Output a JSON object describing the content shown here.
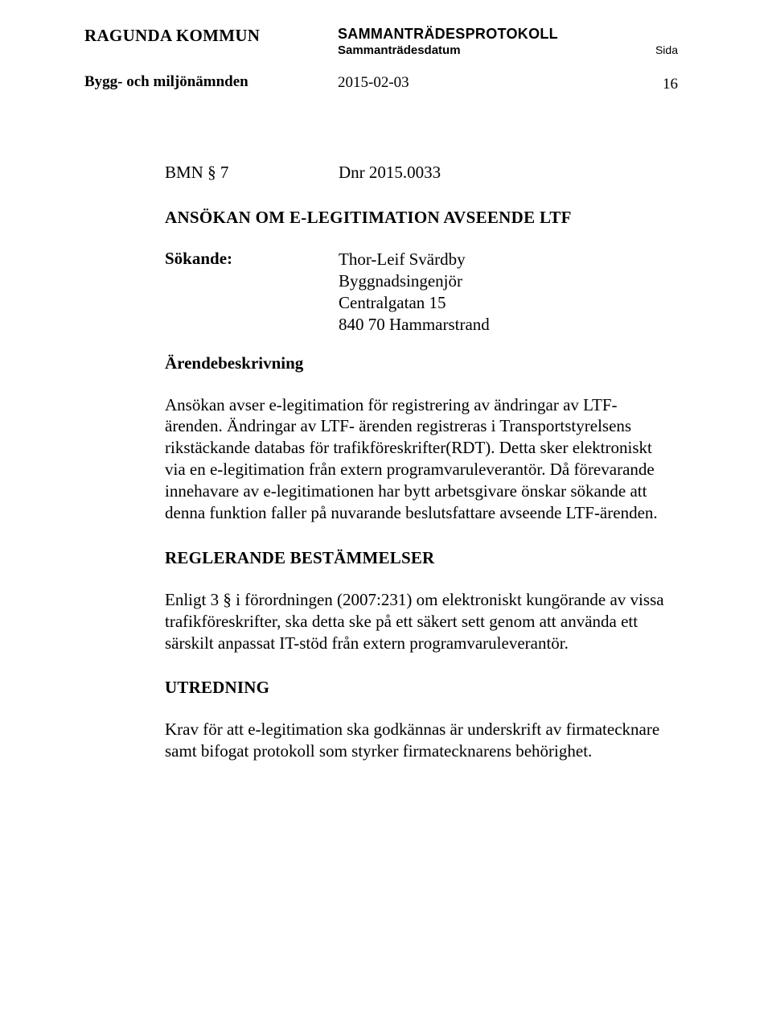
{
  "header": {
    "org": "RAGUNDA KOMMUN",
    "committee": "Bygg- och miljönämnden",
    "protocol": "SAMMANTRÄDESPROTOKOLL",
    "date_label": "Sammanträdesdatum",
    "date": "2015-02-03",
    "sida_label": "Sida",
    "page_number": "16"
  },
  "ref": {
    "left": "BMN § 7",
    "right": "Dnr 2015.0033"
  },
  "title": "ANSÖKAN OM E-LEGITIMATION AVSEENDE LTF",
  "applicant": {
    "label": "Sökande:",
    "name": "Thor-Leif Svärdby",
    "role": "Byggnadsingenjör",
    "street": "Centralgatan 15",
    "city": "840 70 Hammarstrand"
  },
  "desc_heading": "Ärendebeskrivning",
  "desc_text": "Ansökan avser e-legitimation för registrering av ändringar av LTF-ärenden. Ändringar av LTF- ärenden registreras i Transportstyrelsens rikstäckande databas för trafikföreskrifter(RDT). Detta sker elektroniskt via en e-legitimation från extern programvaruleverantör. Då förevarande innehavare av e-legitimationen har bytt arbetsgivare önskar sökande att denna funktion faller på nuvarande beslutsfattare avseende LTF-ärenden.",
  "rules_heading": "REGLERANDE BESTÄMMELSER",
  "rules_text": "Enligt 3 § i förordningen (2007:231) om elektroniskt kungörande av vissa trafikföreskrifter, ska detta ske på ett säkert sett genom att använda ett särskilt anpassat IT-stöd från extern programvaruleverantör.",
  "utredning_heading": "UTREDNING",
  "utredning_text": "Krav för att e-legitimation ska godkännas är underskrift av firmatecknare samt bifogat protokoll som styrker firmatecknarens behörighet."
}
